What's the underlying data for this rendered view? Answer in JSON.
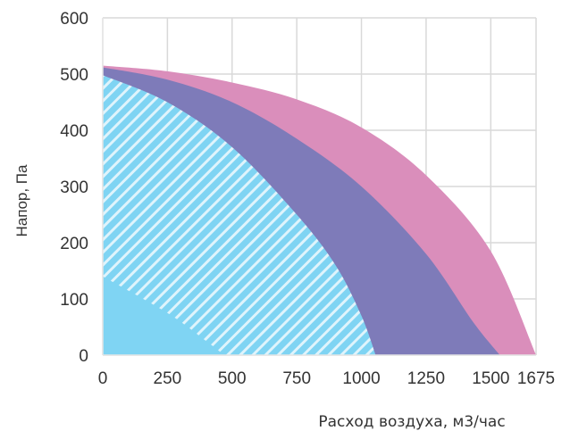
{
  "chart_data": {
    "type": "area",
    "title": "",
    "xlabel": "Расход воздуха, м3/час",
    "ylabel": "Напор, Па",
    "xlim": [
      0,
      1675
    ],
    "ylim": [
      0,
      600
    ],
    "x_ticks": [
      "0",
      "250",
      "500",
      "750",
      "1000",
      "1250",
      "1500",
      "1675"
    ],
    "x_tick_values": [
      0,
      250,
      500,
      750,
      1000,
      1250,
      1500,
      1675
    ],
    "y_ticks": [
      "0",
      "100",
      "200",
      "300",
      "400",
      "500",
      "600"
    ],
    "y_tick_values": [
      0,
      100,
      200,
      300,
      400,
      500,
      600
    ],
    "grid": true,
    "legend": "none",
    "series": [
      {
        "color": "#DA8EBB",
        "fill": "solid",
        "points": [
          [
            0,
            515
          ],
          [
            250,
            505
          ],
          [
            500,
            485
          ],
          [
            750,
            455
          ],
          [
            1000,
            405
          ],
          [
            1250,
            320
          ],
          [
            1500,
            185
          ],
          [
            1675,
            0
          ]
        ]
      },
      {
        "color": "#7E7BB9",
        "fill": "solid",
        "points": [
          [
            0,
            512
          ],
          [
            250,
            490
          ],
          [
            500,
            450
          ],
          [
            750,
            385
          ],
          [
            1000,
            300
          ],
          [
            1250,
            180
          ],
          [
            1430,
            60
          ],
          [
            1535,
            0
          ]
        ]
      },
      {
        "color": "#7FD4F3",
        "fill": "hatched",
        "points": [
          [
            0,
            498
          ],
          [
            250,
            450
          ],
          [
            500,
            370
          ],
          [
            750,
            250
          ],
          [
            900,
            160
          ],
          [
            1000,
            70
          ],
          [
            1055,
            0
          ]
        ]
      },
      {
        "color": "#7FD4F3",
        "fill": "solid",
        "points": [
          [
            0,
            140
          ],
          [
            250,
            75
          ],
          [
            400,
            25
          ],
          [
            470,
            0
          ]
        ]
      }
    ]
  }
}
